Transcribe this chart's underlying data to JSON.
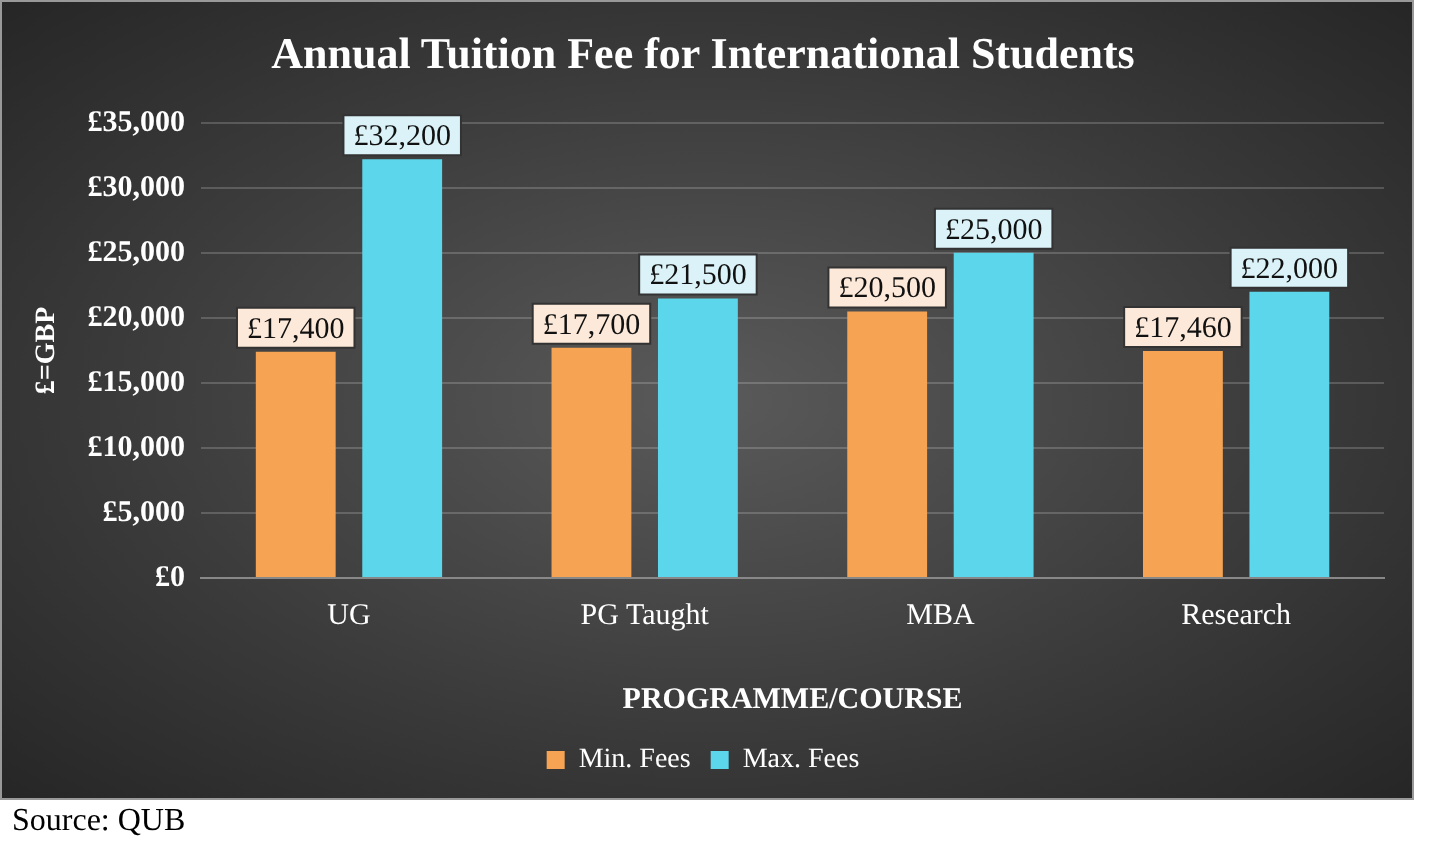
{
  "chart_data": {
    "type": "bar",
    "title": "Annual Tuition Fee for International Students",
    "xlabel": "PROGRAMME/COURSE",
    "ylabel": "£=GBP",
    "categories": [
      "UG",
      "PG Taught",
      "MBA",
      "Research"
    ],
    "series": [
      {
        "name": "Min. Fees",
        "color": "#f7a354",
        "values": [
          17400,
          17700,
          20500,
          17460
        ],
        "value_labels": [
          "£17,400",
          "£17,700",
          "£20,500",
          "£17,460"
        ]
      },
      {
        "name": "Max. Fees",
        "color": "#5cd6ea",
        "values": [
          32200,
          21500,
          25000,
          22000
        ],
        "value_labels": [
          "£32,200",
          "£21,500",
          "£25,000",
          "£22,000"
        ]
      }
    ],
    "ylim": [
      0,
      35000
    ],
    "yticks": [
      {
        "value": 0,
        "label": "£0"
      },
      {
        "value": 5000,
        "label": "£5,000"
      },
      {
        "value": 10000,
        "label": "£10,000"
      },
      {
        "value": 15000,
        "label": "£15,000"
      },
      {
        "value": 20000,
        "label": "£20,000"
      },
      {
        "value": 25000,
        "label": "£25,000"
      },
      {
        "value": 30000,
        "label": "£30,000"
      },
      {
        "value": 35000,
        "label": "£35,000"
      }
    ],
    "grid": "y",
    "legend": "bottom",
    "annotations": [
      "Source: QUB"
    ]
  }
}
